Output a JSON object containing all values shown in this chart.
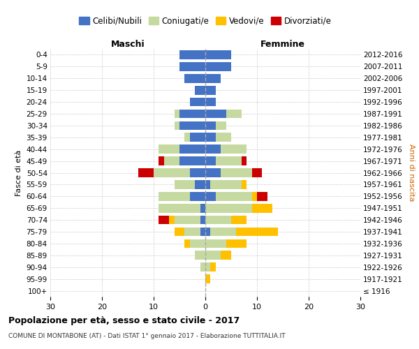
{
  "age_groups": [
    "100+",
    "95-99",
    "90-94",
    "85-89",
    "80-84",
    "75-79",
    "70-74",
    "65-69",
    "60-64",
    "55-59",
    "50-54",
    "45-49",
    "40-44",
    "35-39",
    "30-34",
    "25-29",
    "20-24",
    "15-19",
    "10-14",
    "5-9",
    "0-4"
  ],
  "birth_years": [
    "≤ 1916",
    "1917-1921",
    "1922-1926",
    "1927-1931",
    "1932-1936",
    "1937-1941",
    "1942-1946",
    "1947-1951",
    "1952-1956",
    "1957-1961",
    "1962-1966",
    "1967-1971",
    "1972-1976",
    "1977-1981",
    "1982-1986",
    "1987-1991",
    "1992-1996",
    "1997-2001",
    "2002-2006",
    "2007-2011",
    "2012-2016"
  ],
  "maschi": {
    "celibi": [
      0,
      0,
      0,
      0,
      0,
      1,
      1,
      1,
      3,
      2,
      3,
      5,
      5,
      3,
      5,
      5,
      3,
      2,
      4,
      5,
      5
    ],
    "coniugati": [
      0,
      0,
      1,
      2,
      3,
      3,
      5,
      8,
      6,
      4,
      7,
      3,
      4,
      1,
      1,
      1,
      0,
      0,
      0,
      0,
      0
    ],
    "vedovi": [
      0,
      0,
      0,
      0,
      1,
      2,
      1,
      0,
      0,
      0,
      0,
      0,
      0,
      0,
      0,
      0,
      0,
      0,
      0,
      0,
      0
    ],
    "divorziati": [
      0,
      0,
      0,
      0,
      0,
      0,
      2,
      0,
      0,
      0,
      3,
      1,
      0,
      0,
      0,
      0,
      0,
      0,
      0,
      0,
      0
    ]
  },
  "femmine": {
    "nubili": [
      0,
      0,
      0,
      0,
      0,
      1,
      0,
      0,
      2,
      1,
      3,
      2,
      3,
      2,
      2,
      4,
      2,
      2,
      3,
      5,
      5
    ],
    "coniugate": [
      0,
      0,
      1,
      3,
      4,
      5,
      5,
      9,
      7,
      6,
      6,
      5,
      5,
      3,
      2,
      3,
      0,
      0,
      0,
      0,
      0
    ],
    "vedove": [
      0,
      1,
      1,
      2,
      4,
      8,
      3,
      4,
      1,
      1,
      0,
      0,
      0,
      0,
      0,
      0,
      0,
      0,
      0,
      0,
      0
    ],
    "divorziate": [
      0,
      0,
      0,
      0,
      0,
      0,
      0,
      0,
      2,
      0,
      2,
      1,
      0,
      0,
      0,
      0,
      0,
      0,
      0,
      0,
      0
    ]
  },
  "colors": {
    "celibi": "#4472c4",
    "coniugati": "#c5d9a0",
    "vedovi": "#ffc000",
    "divorziati": "#cc0000"
  },
  "title": "Popolazione per età, sesso e stato civile - 2017",
  "subtitle": "COMUNE DI MONTABONE (AT) - Dati ISTAT 1° gennaio 2017 - Elaborazione TUTTITALIA.IT",
  "ylabel": "Fasce di età",
  "ylabel_right": "Anni di nascita",
  "xlabel_maschi": "Maschi",
  "xlabel_femmine": "Femmine",
  "xlim": 30,
  "legend_labels": [
    "Celibi/Nubili",
    "Coniugati/e",
    "Vedovi/e",
    "Divorziati/e"
  ]
}
